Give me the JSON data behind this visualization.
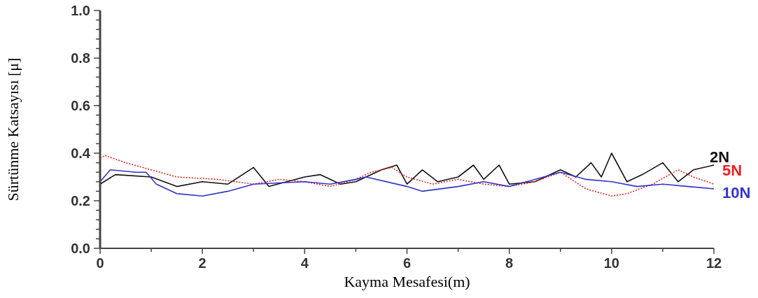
{
  "chart_data": {
    "type": "line",
    "xlabel": "Kayma Mesafesi(m)",
    "ylabel": "Sürtünme Katsayısı [μ]",
    "xlim": [
      0,
      12
    ],
    "ylim": [
      0,
      1
    ],
    "xticks": [
      0,
      {
        "value": 1,
        "label": null
      },
      2,
      {
        "value": 3,
        "label": null
      },
      4,
      {
        "value": 5,
        "label": null
      },
      6,
      {
        "value": 7,
        "label": null
      },
      8,
      {
        "value": 9,
        "label": null
      },
      10,
      {
        "value": 11,
        "label": null
      },
      12
    ],
    "yticks": [
      "0.0",
      {
        "value": 0.04,
        "label": null
      },
      {
        "value": 0.08,
        "label": null
      },
      {
        "value": 0.12,
        "label": null
      },
      {
        "value": 0.16,
        "label": null
      },
      0.2,
      {
        "value": 0.24,
        "label": null
      },
      {
        "value": 0.28,
        "label": null
      },
      {
        "value": 0.32,
        "label": null
      },
      {
        "value": 0.36,
        "label": null
      },
      0.4,
      {
        "value": 0.44,
        "label": null
      },
      {
        "value": 0.48,
        "label": null
      },
      {
        "value": 0.52,
        "label": null
      },
      {
        "value": 0.56,
        "label": null
      },
      0.6,
      {
        "value": 0.64,
        "label": null
      },
      {
        "value": 0.68,
        "label": null
      },
      {
        "value": 0.72,
        "label": null
      },
      {
        "value": 0.76,
        "label": null
      },
      0.8,
      {
        "value": 0.84,
        "label": null
      },
      {
        "value": 0.88,
        "label": null
      },
      {
        "value": 0.92,
        "label": null
      },
      {
        "value": 0.96,
        "label": null
      },
      {
        "value": 1,
        "label": "1.0"
      }
    ],
    "grid": false,
    "series": [
      {
        "name": "2N",
        "color": "#111111",
        "line_style": "solid",
        "x": [
          0,
          0.3,
          1,
          1.5,
          2,
          2.5,
          3,
          3.3,
          4,
          4.3,
          4.7,
          5,
          5.5,
          5.8,
          6,
          6.3,
          6.6,
          7,
          7.3,
          7.5,
          7.8,
          8,
          8.5,
          9,
          9.3,
          9.6,
          9.8,
          10,
          10.3,
          10.6,
          11,
          11.3,
          11.6,
          12
        ],
        "values": [
          0.27,
          0.31,
          0.3,
          0.26,
          0.28,
          0.27,
          0.34,
          0.26,
          0.3,
          0.31,
          0.27,
          0.28,
          0.33,
          0.35,
          0.27,
          0.33,
          0.28,
          0.3,
          0.35,
          0.29,
          0.35,
          0.27,
          0.28,
          0.33,
          0.3,
          0.36,
          0.3,
          0.4,
          0.28,
          0.31,
          0.36,
          0.28,
          0.33,
          0.35
        ]
      },
      {
        "name": "5N",
        "color": "#ee2222",
        "line_style": "dotted",
        "x": [
          0,
          0.1,
          0.5,
          1,
          1.5,
          2.3,
          3,
          3.5,
          4,
          4.5,
          5,
          5.3,
          5.7,
          6,
          6.5,
          7,
          7.5,
          8,
          8.5,
          9,
          9.5,
          10,
          10.3,
          10.8,
          11.3,
          11.6,
          12
        ],
        "values": [
          0.38,
          0.39,
          0.36,
          0.33,
          0.3,
          0.29,
          0.27,
          0.29,
          0.28,
          0.26,
          0.29,
          0.32,
          0.34,
          0.3,
          0.27,
          0.29,
          0.27,
          0.26,
          0.28,
          0.32,
          0.25,
          0.22,
          0.23,
          0.27,
          0.33,
          0.3,
          0.27
        ]
      },
      {
        "name": "10N",
        "color": "#3333cc",
        "line_style": "solid",
        "x": [
          0,
          0.2,
          0.7,
          0.9,
          1.1,
          1.5,
          2,
          2.5,
          3,
          4,
          4.5,
          5,
          5.2,
          6,
          6.3,
          7,
          7.5,
          8,
          8.5,
          9,
          9.5,
          10,
          10.5,
          11,
          11.5,
          12
        ],
        "values": [
          0.28,
          0.33,
          0.32,
          0.32,
          0.27,
          0.23,
          0.22,
          0.24,
          0.27,
          0.28,
          0.27,
          0.29,
          0.3,
          0.26,
          0.24,
          0.26,
          0.28,
          0.26,
          0.29,
          0.32,
          0.29,
          0.28,
          0.26,
          0.27,
          0.26,
          0.25
        ]
      }
    ]
  }
}
